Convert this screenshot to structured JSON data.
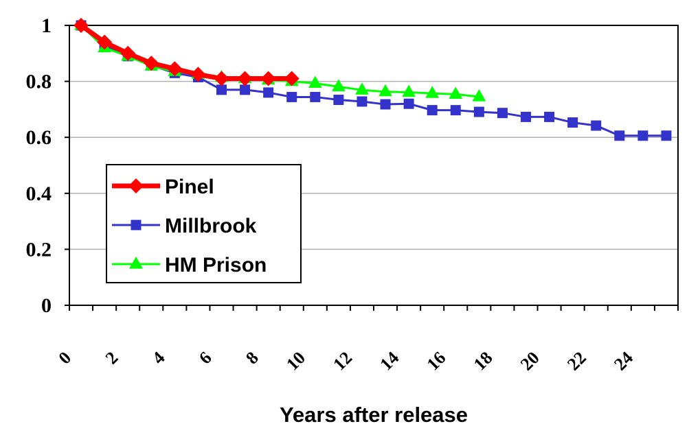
{
  "chart_data": {
    "type": "line",
    "title": "",
    "xlabel": "Years after release",
    "ylabel": "",
    "xlim": [
      0,
      26
    ],
    "ylim": [
      0,
      1
    ],
    "x_tick_labels": [
      "0",
      "2",
      "4",
      "6",
      "8",
      "10",
      "12",
      "14",
      "16",
      "18",
      "20",
      "22",
      "24"
    ],
    "y_tick_labels": [
      "0",
      "0.2",
      "0.4",
      "0.6",
      "0.8",
      "1"
    ],
    "grid": "horizontal",
    "legend_position": "left-center",
    "series": [
      {
        "name": "Pinel",
        "color": "#ff0000",
        "marker": "diamond",
        "x": [
          0.5,
          1.5,
          2.5,
          3.5,
          4.5,
          5.5,
          6.5,
          7.5,
          8.5,
          9.5
        ],
        "values": [
          1.0,
          0.94,
          0.9,
          0.865,
          0.845,
          0.825,
          0.81,
          0.81,
          0.81,
          0.81
        ]
      },
      {
        "name": "Millbrook",
        "color": "#3333cc",
        "marker": "square",
        "x": [
          0.5,
          1.5,
          2.5,
          3.5,
          4.5,
          5.5,
          6.5,
          7.5,
          8.5,
          9.5,
          10.5,
          11.5,
          12.5,
          13.5,
          14.5,
          15.5,
          16.5,
          17.5,
          18.5,
          19.5,
          20.5,
          21.5,
          22.5,
          23.5,
          24.5,
          25.5
        ],
        "values": [
          1.0,
          0.93,
          0.89,
          0.857,
          0.83,
          0.815,
          0.77,
          0.77,
          0.76,
          0.744,
          0.744,
          0.734,
          0.728,
          0.718,
          0.72,
          0.697,
          0.697,
          0.691,
          0.687,
          0.673,
          0.673,
          0.653,
          0.642,
          0.606,
          0.606,
          0.606
        ]
      },
      {
        "name": "HM Prison",
        "color": "#00ff00",
        "marker": "triangle",
        "x": [
          0.5,
          1.5,
          2.5,
          3.5,
          4.5,
          5.5,
          6.5,
          7.5,
          8.5,
          9.5,
          10.5,
          11.5,
          12.5,
          13.5,
          14.5,
          15.5,
          16.5,
          17.5
        ],
        "values": [
          1.0,
          0.92,
          0.89,
          0.855,
          0.835,
          0.826,
          0.814,
          0.81,
          0.805,
          0.8,
          0.793,
          0.781,
          0.769,
          0.763,
          0.761,
          0.757,
          0.754,
          0.745
        ]
      }
    ]
  }
}
